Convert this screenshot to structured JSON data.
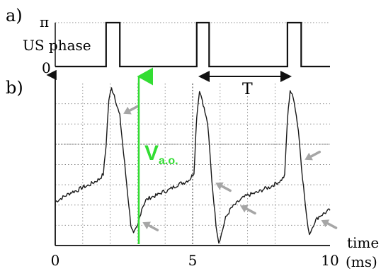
{
  "panel_a": {
    "label": "a)",
    "y_top_label": "π",
    "y_bottom_label": "0",
    "signal_label": "US phase"
  },
  "panel_b": {
    "label": "b)",
    "period_label": "T",
    "amplitude_label_main": "V",
    "amplitude_label_sub": "a.o.",
    "x_axis_label": "time",
    "x_unit_label": "(ms)"
  },
  "colors": {
    "trace": "#1a1a1a",
    "amplitude_marker": "#33dd33",
    "arrow": "#a6a6a6",
    "grid": "#8c8c8c"
  },
  "chart_data": [
    {
      "type": "line",
      "panel": "a",
      "ylabel": "US phase",
      "ytick_labels": [
        "0",
        "π"
      ],
      "ylim": [
        0,
        3.14159
      ],
      "xlim": [
        0,
        10
      ],
      "x": [
        0,
        1.85,
        1.85,
        2.35,
        2.35,
        5.15,
        5.15,
        5.6,
        5.6,
        8.45,
        8.45,
        8.95,
        8.95,
        10
      ],
      "y": [
        0,
        0,
        3.14159,
        3.14159,
        0,
        0,
        3.14159,
        3.14159,
        0,
        0,
        3.14159,
        3.14159,
        0,
        0
      ]
    },
    {
      "type": "line",
      "panel": "b",
      "xlabel": "time",
      "xunit": "(ms)",
      "xlim": [
        0,
        10
      ],
      "xticks": [
        0,
        5,
        10
      ],
      "xtick_labels": [
        "0",
        "5",
        "10"
      ],
      "ylim": [
        0,
        1
      ],
      "grid": true,
      "annotations": [
        "T",
        "Va.o."
      ],
      "x": [
        0,
        0.2,
        0.4,
        0.6,
        0.8,
        1.0,
        1.2,
        1.4,
        1.6,
        1.75,
        1.85,
        1.95,
        2.05,
        2.15,
        2.25,
        2.35,
        2.45,
        2.6,
        2.75,
        2.85,
        3.0,
        3.15,
        3.3,
        3.5,
        3.7,
        3.9,
        4.1,
        4.3,
        4.5,
        4.7,
        4.9,
        5.05,
        5.15,
        5.25,
        5.35,
        5.45,
        5.55,
        5.7,
        5.85,
        5.95,
        6.05,
        6.2,
        6.4,
        6.6,
        6.8,
        7.0,
        7.2,
        7.4,
        7.6,
        7.8,
        8.0,
        8.2,
        8.35,
        8.45,
        8.55,
        8.7,
        8.85,
        9.0,
        9.15,
        9.25,
        9.35,
        9.45,
        9.6,
        9.8,
        10.0
      ],
      "y": [
        0.27,
        0.29,
        0.31,
        0.33,
        0.34,
        0.36,
        0.37,
        0.39,
        0.41,
        0.44,
        0.62,
        0.9,
        0.97,
        0.93,
        0.86,
        0.8,
        0.63,
        0.38,
        0.13,
        0.07,
        0.12,
        0.23,
        0.28,
        0.3,
        0.31,
        0.33,
        0.34,
        0.36,
        0.38,
        0.39,
        0.41,
        0.45,
        0.8,
        0.96,
        0.9,
        0.82,
        0.75,
        0.4,
        0.13,
        0.02,
        0.07,
        0.17,
        0.23,
        0.26,
        0.29,
        0.31,
        0.32,
        0.33,
        0.35,
        0.36,
        0.38,
        0.4,
        0.43,
        0.78,
        0.96,
        0.89,
        0.71,
        0.42,
        0.17,
        0.07,
        0.11,
        0.15,
        0.18,
        0.2,
        0.22
      ],
      "arrows_at": [
        2.35,
        3.05,
        5.7,
        6.6,
        8.95,
        9.55
      ]
    }
  ]
}
